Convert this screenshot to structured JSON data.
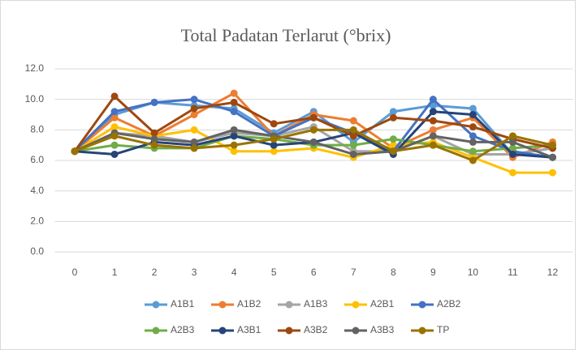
{
  "chart_data": {
    "type": "line",
    "title": "Total Padatan Terlarut (°brix)",
    "categories": [
      "0",
      "1",
      "2",
      "3",
      "4",
      "5",
      "6",
      "7",
      "8",
      "9",
      "10",
      "11",
      "12"
    ],
    "ylim": [
      0,
      12
    ],
    "yticks": [
      {
        "value": 0,
        "label": "0.0"
      },
      {
        "value": 2,
        "label": "2.0"
      },
      {
        "value": 4,
        "label": "4.0"
      },
      {
        "value": 6,
        "label": "6.0"
      },
      {
        "value": 8,
        "label": "8.0"
      },
      {
        "value": 10,
        "label": "10.0"
      },
      {
        "value": 12,
        "label": "12.0"
      }
    ],
    "grid": true,
    "legend": "bottom",
    "series": [
      {
        "name": "A1B1",
        "color": "#5b9bd5",
        "values": [
          6.6,
          9.0,
          9.8,
          9.6,
          9.4,
          7.8,
          9.2,
          7.2,
          9.2,
          9.6,
          9.4,
          6.4,
          6.8
        ]
      },
      {
        "name": "A1B2",
        "color": "#ed7d31",
        "values": [
          6.6,
          8.8,
          7.6,
          9.0,
          10.4,
          7.6,
          9.0,
          8.6,
          6.8,
          8.0,
          8.8,
          6.2,
          7.2
        ]
      },
      {
        "name": "A1B3",
        "color": "#a5a5a5",
        "values": [
          6.6,
          7.8,
          7.6,
          7.2,
          7.8,
          7.6,
          8.2,
          6.6,
          6.6,
          7.6,
          6.4,
          6.4,
          6.8
        ]
      },
      {
        "name": "A2B1",
        "color": "#ffc000",
        "values": [
          6.6,
          8.2,
          7.6,
          8.0,
          6.6,
          6.6,
          6.8,
          6.2,
          7.0,
          7.2,
          6.2,
          5.2,
          5.2
        ]
      },
      {
        "name": "A2B2",
        "color": "#4472c4",
        "values": [
          6.6,
          9.2,
          9.8,
          10.0,
          9.2,
          7.6,
          8.8,
          7.8,
          6.6,
          10.0,
          7.6,
          6.6,
          6.2
        ]
      },
      {
        "name": "A2B3",
        "color": "#70ad47",
        "values": [
          6.6,
          7.0,
          6.8,
          6.8,
          7.6,
          7.4,
          7.0,
          7.0,
          7.4,
          7.0,
          6.6,
          6.8,
          7.0
        ]
      },
      {
        "name": "A3B1",
        "color": "#264478",
        "values": [
          6.6,
          6.4,
          7.2,
          7.0,
          7.6,
          7.0,
          7.2,
          7.8,
          6.4,
          9.2,
          9.0,
          6.4,
          6.2
        ]
      },
      {
        "name": "A3B2",
        "color": "#9e480e",
        "values": [
          6.6,
          10.2,
          7.8,
          9.4,
          9.8,
          8.4,
          8.8,
          7.6,
          8.8,
          8.6,
          8.2,
          7.4,
          6.8
        ]
      },
      {
        "name": "A3B3",
        "color": "#636363",
        "values": [
          6.6,
          7.8,
          7.4,
          7.2,
          8.0,
          7.6,
          7.2,
          6.4,
          6.6,
          7.6,
          7.2,
          7.2,
          6.2
        ]
      },
      {
        "name": "TP",
        "color": "#997300",
        "values": [
          6.6,
          7.6,
          7.0,
          6.8,
          7.0,
          7.4,
          8.0,
          8.0,
          6.6,
          7.0,
          6.0,
          7.6,
          7.0
        ]
      }
    ]
  }
}
